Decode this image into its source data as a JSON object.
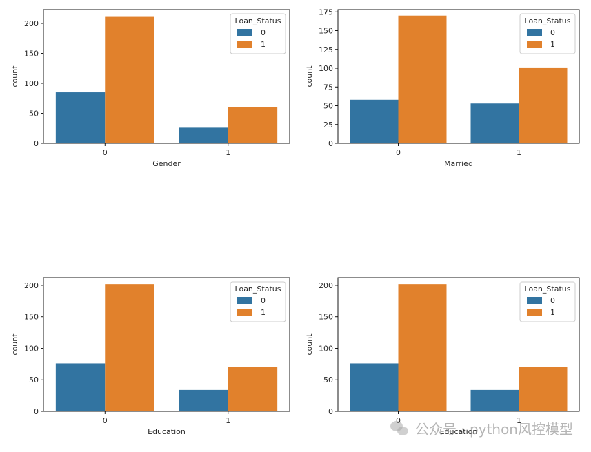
{
  "colors": {
    "series_0": "#3274a1",
    "series_1": "#e1812c",
    "axis": "#000000",
    "text": "#262626"
  },
  "watermark": {
    "icon": "wechat-icon",
    "text": "公众号 · python风控模型"
  },
  "chart_data": [
    {
      "type": "bar",
      "categories": [
        "0",
        "1"
      ],
      "xlabel": "Gender",
      "ylabel": "count",
      "ylim": [
        0,
        223
      ],
      "yticks": [
        0,
        50,
        100,
        150,
        200
      ],
      "legend": {
        "title": "Loan_Status",
        "placement": "top-right",
        "entries": [
          "0",
          "1"
        ]
      },
      "series": [
        {
          "name": "0",
          "values": [
            85,
            26
          ]
        },
        {
          "name": "1",
          "values": [
            212,
            60
          ]
        }
      ]
    },
    {
      "type": "bar",
      "categories": [
        "0",
        "1"
      ],
      "xlabel": "Married",
      "ylabel": "count",
      "ylim": [
        0,
        178
      ],
      "yticks": [
        0,
        25,
        50,
        75,
        100,
        125,
        150,
        175
      ],
      "legend": {
        "title": "Loan_Status",
        "placement": "top-right",
        "entries": [
          "0",
          "1"
        ]
      },
      "series": [
        {
          "name": "0",
          "values": [
            58,
            53
          ]
        },
        {
          "name": "1",
          "values": [
            170,
            101
          ]
        }
      ]
    },
    {
      "type": "bar",
      "categories": [
        "0",
        "1"
      ],
      "xlabel": "Education",
      "ylabel": "count",
      "ylim": [
        0,
        212
      ],
      "yticks": [
        0,
        50,
        100,
        150,
        200
      ],
      "legend": {
        "title": "Loan_Status",
        "placement": "top-right",
        "entries": [
          "0",
          "1"
        ]
      },
      "series": [
        {
          "name": "0",
          "values": [
            76,
            34
          ]
        },
        {
          "name": "1",
          "values": [
            202,
            70
          ]
        }
      ]
    },
    {
      "type": "bar",
      "categories": [
        "0",
        "1"
      ],
      "xlabel": "Education",
      "ylabel": "count",
      "ylim": [
        0,
        212
      ],
      "yticks": [
        0,
        50,
        100,
        150,
        200
      ],
      "legend": {
        "title": "Loan_Status",
        "placement": "top-right",
        "entries": [
          "0",
          "1"
        ]
      },
      "series": [
        {
          "name": "0",
          "values": [
            76,
            34
          ]
        },
        {
          "name": "1",
          "values": [
            202,
            70
          ]
        }
      ]
    }
  ]
}
